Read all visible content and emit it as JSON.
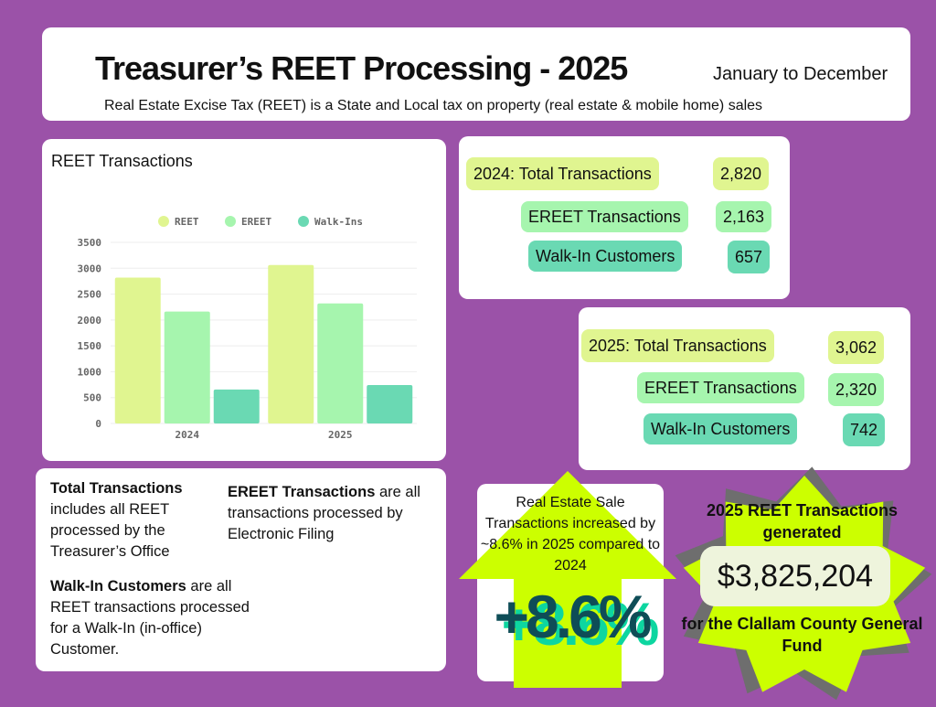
{
  "header": {
    "title": "Treasurer’s REET Processing - 2025",
    "range": "January to December",
    "subtitle": "Real Estate Excise Tax (REET) is a State and Local tax on property (real estate & mobile home) sales"
  },
  "chart_data": {
    "type": "bar",
    "title": "REET Transactions",
    "categories": [
      "2024",
      "2025"
    ],
    "series": [
      {
        "name": "REET",
        "values": [
          2820,
          3062
        ],
        "color": "#e0f590"
      },
      {
        "name": "EREET",
        "values": [
          2163,
          2320
        ],
        "color": "#a6f5ae"
      },
      {
        "name": "Walk-Ins",
        "values": [
          657,
          742
        ],
        "color": "#6ad9b3"
      }
    ],
    "ylim": [
      0,
      3500
    ],
    "yticks": [
      0,
      500,
      1000,
      1500,
      2000,
      2500,
      3000,
      3500
    ],
    "grid": true,
    "legend": "top"
  },
  "stats2024": {
    "total_label": "2024:  Total Transactions",
    "total": "2,820",
    "ereet_label": "EREET Transactions",
    "ereet": "2,163",
    "walkin_label": "Walk-In Customers",
    "walkin": "657"
  },
  "stats2025": {
    "total_label": "2025:  Total Transactions",
    "total": "3,062",
    "ereet_label": "EREET Transactions",
    "ereet": "2,320",
    "walkin_label": "Walk-In Customers",
    "walkin": "742"
  },
  "notes": {
    "total_bold": "Total Transactions",
    "total_text": " includes all REET processed by the Treasurer’s Office",
    "ereet_bold": "EREET Transactions",
    "ereet_text": " are all transactions processed by Electronic Filing",
    "walkin_bold": "Walk-In Customers",
    "walkin_text": " are all REET transactions processed for a Walk-In (in-office) Customer."
  },
  "increase": {
    "text": "Real Estate Sale Transactions increased by ~8.6% in 2025 compared to 2024",
    "big": "+8.6%"
  },
  "revenue": {
    "top": "2025 REET Transactions generated",
    "amount": "$3,825,204",
    "bottom": "for the Clallam County General Fund"
  }
}
